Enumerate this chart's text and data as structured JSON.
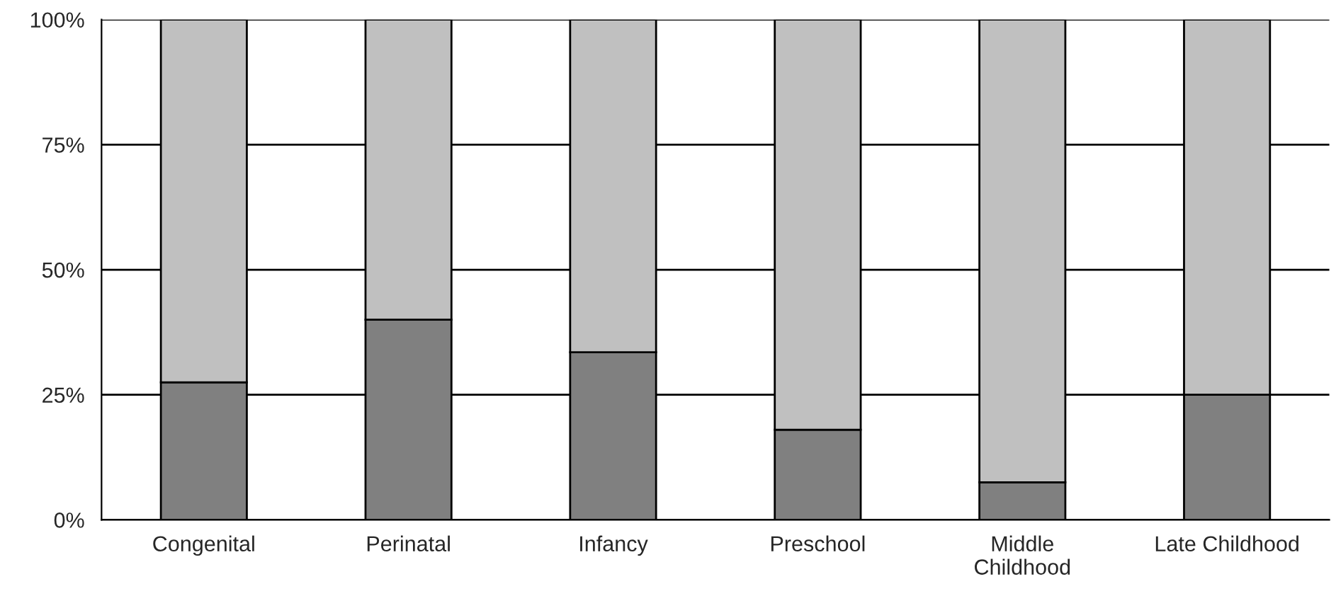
{
  "chart_data": {
    "type": "bar",
    "stacked": true,
    "categories": [
      "Congenital",
      "Perinatal",
      "Infancy",
      "Preschool",
      "Middle\nChildhood",
      "Late Childhood"
    ],
    "series": [
      {
        "color": "#808080",
        "values": [
          27.5,
          40,
          33.5,
          18,
          7.5,
          25
        ]
      },
      {
        "color": "#c0c0c0",
        "values": [
          72.5,
          60,
          66.5,
          82,
          92.5,
          75
        ]
      }
    ],
    "ylim": [
      0,
      100
    ],
    "yticks": [
      {
        "value": 0,
        "label": "0%"
      },
      {
        "value": 25,
        "label": "25%"
      },
      {
        "value": 50,
        "label": "50%"
      },
      {
        "value": 75,
        "label": "75%"
      },
      {
        "value": 100,
        "label": "100%"
      }
    ],
    "grid": "y",
    "legend": false
  }
}
